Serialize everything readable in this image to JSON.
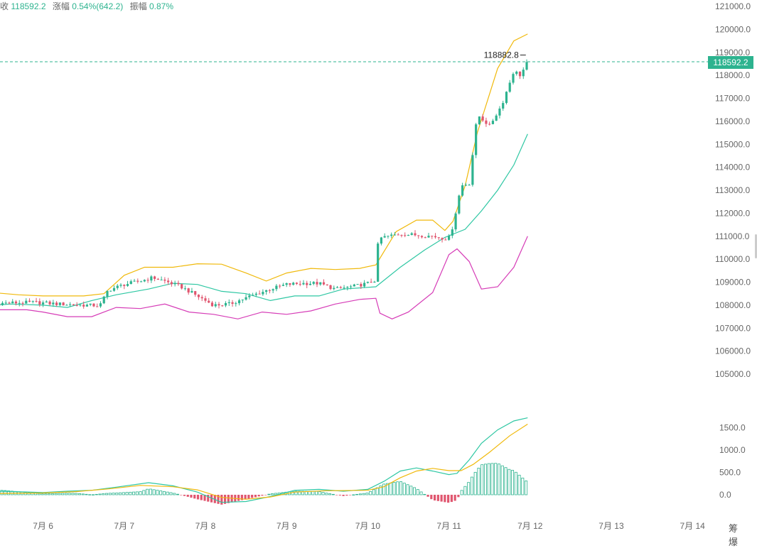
{
  "header": {
    "close_label": "收",
    "close_value": "118592.2",
    "change_label": "涨幅",
    "change_value": "0.54%(642.2)",
    "amp_label": "振幅",
    "amp_value": "0.87%"
  },
  "last_price": "118592.2",
  "high_marker": "118882.8",
  "corner_label": "筹 爆",
  "colors": {
    "up": "#2db38f",
    "down": "#e0566f",
    "upper_band": "#f0b90b",
    "middle_band": "#2ec7a3",
    "lower_band": "#d63cb7",
    "macd_dif": "#2ec7a3",
    "macd_dea": "#f0b90b",
    "last_price_line": "#2db38f"
  },
  "chart_data": {
    "type": "candlestick",
    "x_labels": [
      "7月 6",
      "7月 7",
      "7月 8",
      "7月 9",
      "7月 10",
      "7月 11",
      "7月 12",
      "7月 13",
      "7月 14"
    ],
    "price_axis": {
      "ticks": [
        "121000.0",
        "120000.0",
        "119000.0",
        "118000.0",
        "117000.0",
        "116000.0",
        "115000.0",
        "114000.0",
        "113000.0",
        "112000.0",
        "111000.0",
        "110000.0",
        "109000.0",
        "108000.0",
        "107000.0",
        "106000.0",
        "105000.0"
      ],
      "range": [
        105000,
        121000
      ]
    },
    "macd_axis": {
      "ticks": [
        "1500.0",
        "1000.0",
        "500.0",
        "0.0"
      ],
      "range": [
        -200,
        1600
      ]
    },
    "price_anchors": [
      [
        5.0,
        108150
      ],
      [
        5.3,
        108050
      ],
      [
        5.6,
        108100
      ],
      [
        5.9,
        108120
      ],
      [
        6.2,
        108050
      ],
      [
        6.5,
        108000
      ],
      [
        6.7,
        107980
      ],
      [
        6.8,
        108650
      ],
      [
        7.0,
        108900
      ],
      [
        7.2,
        109050
      ],
      [
        7.35,
        109200
      ],
      [
        7.5,
        109050
      ],
      [
        7.7,
        108800
      ],
      [
        7.85,
        108500
      ],
      [
        8.0,
        108200
      ],
      [
        8.1,
        108000
      ],
      [
        8.3,
        108050
      ],
      [
        8.45,
        108250
      ],
      [
        8.6,
        108450
      ],
      [
        8.8,
        108700
      ],
      [
        9.0,
        108900
      ],
      [
        9.2,
        108950
      ],
      [
        9.4,
        108950
      ],
      [
        9.6,
        108700
      ],
      [
        9.8,
        108800
      ],
      [
        10.0,
        108950
      ],
      [
        10.1,
        109100
      ],
      [
        10.13,
        110900
      ],
      [
        10.25,
        111000
      ],
      [
        10.4,
        111100
      ],
      [
        10.6,
        111050
      ],
      [
        10.8,
        111000
      ],
      [
        10.95,
        110900
      ],
      [
        11.0,
        110950
      ],
      [
        11.05,
        111450
      ],
      [
        11.15,
        113200
      ],
      [
        11.25,
        113300
      ],
      [
        11.35,
        116300
      ],
      [
        11.5,
        115800
      ],
      [
        11.65,
        116700
      ],
      [
        11.8,
        118200
      ],
      [
        11.88,
        118000
      ],
      [
        11.97,
        118592
      ]
    ],
    "upper_band": [
      [
        4.45,
        109400
      ],
      [
        4.6,
        108600
      ],
      [
        4.8,
        108600
      ],
      [
        5.2,
        108600
      ],
      [
        5.7,
        108450
      ],
      [
        6.0,
        108400
      ],
      [
        6.3,
        108400
      ],
      [
        6.5,
        108400
      ],
      [
        6.75,
        108500
      ],
      [
        7.0,
        109300
      ],
      [
        7.25,
        109650
      ],
      [
        7.6,
        109650
      ],
      [
        7.9,
        109800
      ],
      [
        8.2,
        109780
      ],
      [
        8.5,
        109400
      ],
      [
        8.75,
        109050
      ],
      [
        9.0,
        109400
      ],
      [
        9.3,
        109600
      ],
      [
        9.6,
        109550
      ],
      [
        9.9,
        109600
      ],
      [
        10.1,
        109750
      ],
      [
        10.35,
        111200
      ],
      [
        10.6,
        111700
      ],
      [
        10.8,
        111700
      ],
      [
        10.95,
        111250
      ],
      [
        11.05,
        111650
      ],
      [
        11.2,
        113200
      ],
      [
        11.35,
        115500
      ],
      [
        11.6,
        118300
      ],
      [
        11.8,
        119500
      ],
      [
        11.97,
        119800
      ]
    ],
    "middle_band": [
      [
        4.45,
        108050
      ],
      [
        4.8,
        107900
      ],
      [
        5.2,
        107950
      ],
      [
        5.6,
        108050
      ],
      [
        6.0,
        108000
      ],
      [
        6.3,
        107900
      ],
      [
        6.6,
        108200
      ],
      [
        6.9,
        108450
      ],
      [
        7.3,
        108700
      ],
      [
        7.6,
        108950
      ],
      [
        7.9,
        108900
      ],
      [
        8.2,
        108600
      ],
      [
        8.5,
        108500
      ],
      [
        8.8,
        108200
      ],
      [
        9.1,
        108400
      ],
      [
        9.4,
        108400
      ],
      [
        9.7,
        108700
      ],
      [
        10.1,
        108800
      ],
      [
        10.4,
        109650
      ],
      [
        10.7,
        110400
      ],
      [
        10.95,
        110950
      ],
      [
        11.2,
        111300
      ],
      [
        11.4,
        112100
      ],
      [
        11.6,
        113000
      ],
      [
        11.8,
        114100
      ],
      [
        11.97,
        115450
      ]
    ],
    "lower_band": [
      [
        4.45,
        107100
      ],
      [
        4.7,
        107250
      ],
      [
        5.0,
        107700
      ],
      [
        5.3,
        107800
      ],
      [
        5.8,
        107800
      ],
      [
        6.0,
        107700
      ],
      [
        6.3,
        107500
      ],
      [
        6.6,
        107500
      ],
      [
        6.9,
        107900
      ],
      [
        7.2,
        107850
      ],
      [
        7.5,
        108050
      ],
      [
        7.8,
        107700
      ],
      [
        8.1,
        107600
      ],
      [
        8.4,
        107400
      ],
      [
        8.7,
        107700
      ],
      [
        9.0,
        107600
      ],
      [
        9.3,
        107750
      ],
      [
        9.6,
        108050
      ],
      [
        9.9,
        108250
      ],
      [
        10.1,
        108300
      ],
      [
        10.15,
        107650
      ],
      [
        10.3,
        107400
      ],
      [
        10.5,
        107700
      ],
      [
        10.8,
        108550
      ],
      [
        11.0,
        110200
      ],
      [
        11.1,
        110450
      ],
      [
        11.25,
        109900
      ],
      [
        11.4,
        108700
      ],
      [
        11.6,
        108800
      ],
      [
        11.8,
        109650
      ],
      [
        11.97,
        111000
      ]
    ],
    "macd_dif_anchors": [
      [
        4.45,
        50
      ],
      [
        5.0,
        0
      ],
      [
        5.5,
        80
      ],
      [
        6.0,
        50
      ],
      [
        6.3,
        80
      ],
      [
        6.6,
        100
      ],
      [
        6.9,
        170
      ],
      [
        7.3,
        270
      ],
      [
        7.6,
        200
      ],
      [
        7.9,
        60
      ],
      [
        8.2,
        -170
      ],
      [
        8.5,
        -150
      ],
      [
        8.8,
        -40
      ],
      [
        9.1,
        100
      ],
      [
        9.4,
        120
      ],
      [
        9.7,
        80
      ],
      [
        10.0,
        120
      ],
      [
        10.2,
        300
      ],
      [
        10.4,
        530
      ],
      [
        10.6,
        600
      ],
      [
        10.8,
        530
      ],
      [
        11.0,
        450
      ],
      [
        11.1,
        480
      ],
      [
        11.25,
        780
      ],
      [
        11.4,
        1150
      ],
      [
        11.6,
        1450
      ],
      [
        11.8,
        1650
      ],
      [
        11.97,
        1720
      ]
    ],
    "macd_dea_anchors": [
      [
        4.45,
        -60
      ],
      [
        5.0,
        -10
      ],
      [
        5.5,
        30
      ],
      [
        6.0,
        40
      ],
      [
        6.4,
        70
      ],
      [
        6.8,
        130
      ],
      [
        7.2,
        210
      ],
      [
        7.6,
        180
      ],
      [
        7.9,
        110
      ],
      [
        8.2,
        -60
      ],
      [
        8.5,
        -100
      ],
      [
        8.8,
        -50
      ],
      [
        9.1,
        60
      ],
      [
        9.5,
        90
      ],
      [
        10.0,
        100
      ],
      [
        10.2,
        180
      ],
      [
        10.4,
        380
      ],
      [
        10.6,
        530
      ],
      [
        10.8,
        590
      ],
      [
        11.0,
        540
      ],
      [
        11.15,
        540
      ],
      [
        11.3,
        680
      ],
      [
        11.5,
        950
      ],
      [
        11.75,
        1320
      ],
      [
        11.97,
        1580
      ]
    ]
  }
}
